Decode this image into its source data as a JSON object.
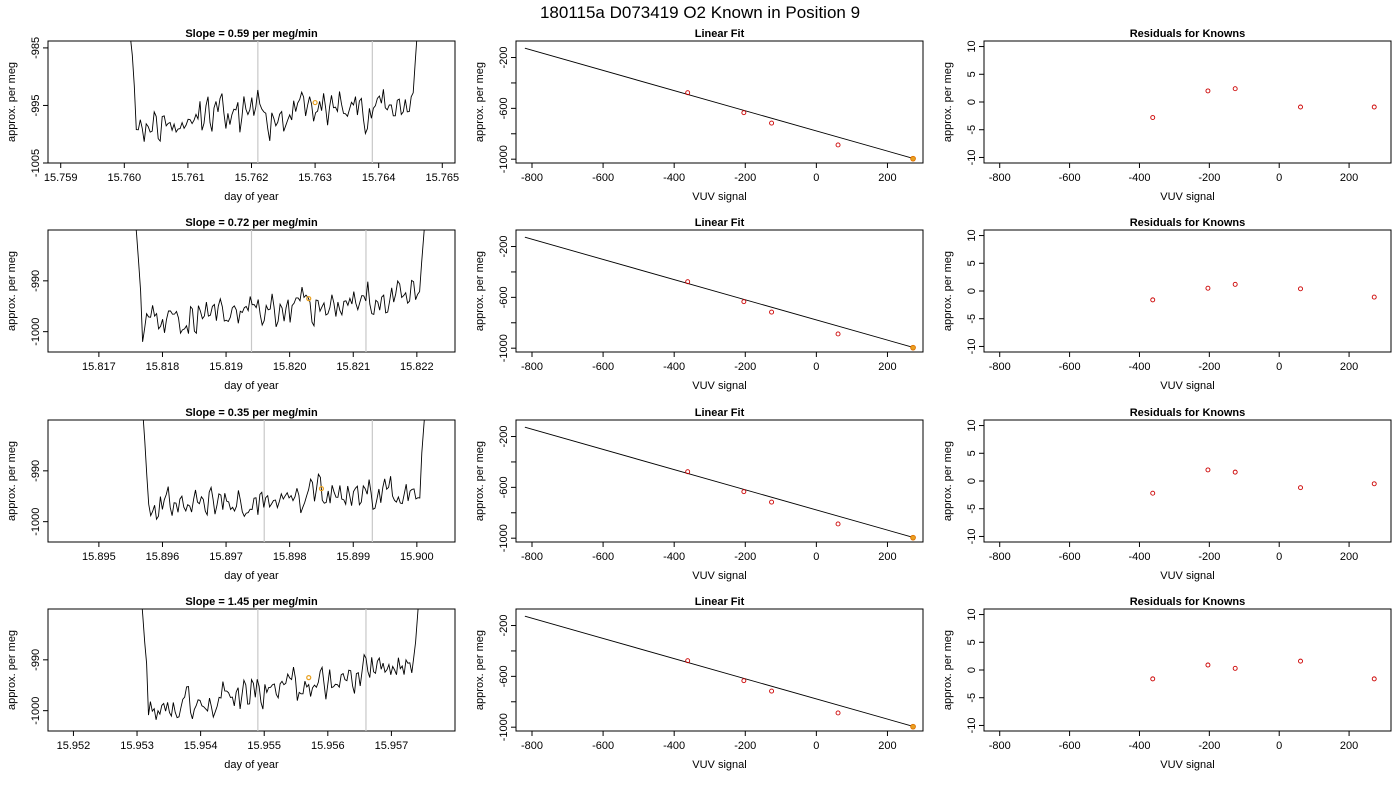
{
  "figure": {
    "title": "180115a      D073419   O2 Known in Position  9"
  },
  "chart_data": [
    {
      "id": "r1c1",
      "type": "line",
      "title": "Slope =  0.59  per meg/min",
      "xlabel": "day of year",
      "ylabel": "approx. per meg",
      "xlim": [
        15.7588,
        15.7652
      ],
      "ylim": [
        -1005,
        -983.8
      ],
      "xticks": [
        15.759,
        15.76,
        15.761,
        15.762,
        15.763,
        15.764,
        15.765
      ],
      "xtick_labels": [
        "15.759",
        "15.760",
        "15.761",
        "15.762",
        "15.763",
        "15.764",
        "15.765"
      ],
      "yticks": [
        -1005,
        -995,
        -985
      ],
      "ytick_labels": [
        "-1005",
        "-995",
        "-985"
      ],
      "vlines": [
        15.7621,
        15.7639
      ],
      "start": 15.76,
      "end": 15.7647,
      "level": -996.5,
      "slope_per_day": 849.6,
      "seed": 11,
      "marker": {
        "x": 15.763,
        "y": -994.5
      }
    },
    {
      "id": "r1c2",
      "type": "scatter",
      "title": "Linear Fit",
      "xlabel": "VUV signal",
      "ylabel": "approx. per meg",
      "xlim": [
        -845,
        300
      ],
      "ylim": [
        -1030,
        -70
      ],
      "xticks": [
        -800,
        -600,
        -400,
        -200,
        0,
        200
      ],
      "xtick_labels": [
        "-800",
        "-600",
        "-400",
        "-200",
        "0",
        "200"
      ],
      "yticks": [
        -1000,
        -800,
        -600,
        -400,
        -200
      ],
      "ytick_labels": [
        "-1000",
        "",
        "-600",
        "",
        "-200"
      ],
      "line": {
        "x": [
          -820,
          275
        ],
        "y": [
          -127,
          -996
        ]
      },
      "points": [
        {
          "x": -362,
          "y": -477
        },
        {
          "x": -204,
          "y": -634
        },
        {
          "x": -126,
          "y": -716
        },
        {
          "x": 61,
          "y": -888
        },
        {
          "x": 272,
          "y": -996
        }
      ],
      "highlight": 4
    },
    {
      "id": "r1c3",
      "type": "scatter",
      "title": "Residuals for Knowns",
      "xlabel": "VUV signal",
      "ylabel": "approx. per meg",
      "xlim": [
        -845,
        320
      ],
      "ylim": [
        -11,
        11
      ],
      "xticks": [
        -800,
        -600,
        -400,
        -200,
        0,
        200
      ],
      "xtick_labels": [
        "-800",
        "-600",
        "-400",
        "-200",
        "0",
        "200"
      ],
      "yticks": [
        -10,
        -5,
        0,
        5,
        10
      ],
      "ytick_labels": [
        "-10",
        "-5",
        "0",
        "5",
        "10"
      ],
      "points": [
        {
          "x": -362,
          "y": -2.8
        },
        {
          "x": -204,
          "y": 2.0
        },
        {
          "x": -126,
          "y": 2.4
        },
        {
          "x": 61,
          "y": -0.9
        },
        {
          "x": 272,
          "y": -0.9
        }
      ]
    },
    {
      "id": "r2c1",
      "type": "line",
      "title": "Slope =  0.72  per meg/min",
      "xlabel": "day of year",
      "ylabel": "approx. per meg",
      "xlim": [
        15.8162,
        15.8226
      ],
      "ylim": [
        -1004,
        -980
      ],
      "xticks": [
        15.817,
        15.818,
        15.819,
        15.82,
        15.821,
        15.822
      ],
      "xtick_labels": [
        "15.817",
        "15.818",
        "15.819",
        "15.820",
        "15.821",
        "15.822"
      ],
      "yticks": [
        -1000,
        -990
      ],
      "ytick_labels": [
        "-1000",
        "-990"
      ],
      "vlines": [
        15.8194,
        15.8212
      ],
      "start": 15.8175,
      "end": 15.8222,
      "level": -995.5,
      "slope_per_day": 1036.8,
      "seed": 23,
      "marker": {
        "x": 15.8203,
        "y": -993.5
      }
    },
    {
      "id": "r2c2",
      "type": "scatter",
      "title": "Linear Fit",
      "xlabel": "VUV signal",
      "ylabel": "approx. per meg",
      "xlim": [
        -845,
        300
      ],
      "ylim": [
        -1030,
        -70
      ],
      "xticks": [
        -800,
        -600,
        -400,
        -200,
        0,
        200
      ],
      "xtick_labels": [
        "-800",
        "-600",
        "-400",
        "-200",
        "0",
        "200"
      ],
      "yticks": [
        -1000,
        -800,
        -600,
        -400,
        -200
      ],
      "ytick_labels": [
        "-1000",
        "",
        "-600",
        "",
        "-200"
      ],
      "line": {
        "x": [
          -820,
          275
        ],
        "y": [
          -127,
          -996
        ]
      },
      "points": [
        {
          "x": -362,
          "y": -477
        },
        {
          "x": -204,
          "y": -634
        },
        {
          "x": -126,
          "y": -716
        },
        {
          "x": 61,
          "y": -888
        },
        {
          "x": 272,
          "y": -996
        }
      ],
      "highlight": 4
    },
    {
      "id": "r2c3",
      "type": "scatter",
      "title": "Residuals for Knowns",
      "xlabel": "VUV signal",
      "ylabel": "approx. per meg",
      "xlim": [
        -845,
        320
      ],
      "ylim": [
        -11,
        11
      ],
      "xticks": [
        -800,
        -600,
        -400,
        -200,
        0,
        200
      ],
      "xtick_labels": [
        "-800",
        "-600",
        "-400",
        "-200",
        "0",
        "200"
      ],
      "yticks": [
        -10,
        -5,
        0,
        5,
        10
      ],
      "ytick_labels": [
        "-10",
        "-5",
        "0",
        "5",
        "10"
      ],
      "points": [
        {
          "x": -362,
          "y": -1.6
        },
        {
          "x": -204,
          "y": 0.5
        },
        {
          "x": -126,
          "y": 1.2
        },
        {
          "x": 61,
          "y": 0.4
        },
        {
          "x": 272,
          "y": -1.1
        }
      ]
    },
    {
      "id": "r3c1",
      "type": "line",
      "title": "Slope =  0.35  per meg/min",
      "xlabel": "day of year",
      "ylabel": "approx. per meg",
      "xlim": [
        15.8942,
        15.9006
      ],
      "ylim": [
        -1004,
        -980
      ],
      "xticks": [
        15.895,
        15.896,
        15.897,
        15.898,
        15.899,
        15.9
      ],
      "xtick_labels": [
        "15.895",
        "15.896",
        "15.897",
        "15.898",
        "15.899",
        "15.900"
      ],
      "yticks": [
        -1000,
        -990
      ],
      "ytick_labels": [
        "-1000",
        "-990"
      ],
      "vlines": [
        15.8976,
        15.8993
      ],
      "start": 15.8956,
      "end": 15.9002,
      "level": -995.5,
      "slope_per_day": 504,
      "seed": 37,
      "marker": {
        "x": 15.8985,
        "y": -993.5
      }
    },
    {
      "id": "r3c2",
      "type": "scatter",
      "title": "Linear Fit",
      "xlabel": "VUV signal",
      "ylabel": "approx. per meg",
      "xlim": [
        -845,
        300
      ],
      "ylim": [
        -1030,
        -70
      ],
      "xticks": [
        -800,
        -600,
        -400,
        -200,
        0,
        200
      ],
      "xtick_labels": [
        "-800",
        "-600",
        "-400",
        "-200",
        "0",
        "200"
      ],
      "yticks": [
        -1000,
        -800,
        -600,
        -400,
        -200
      ],
      "ytick_labels": [
        "-1000",
        "",
        "-600",
        "",
        "-200"
      ],
      "line": {
        "x": [
          -820,
          275
        ],
        "y": [
          -127,
          -996
        ]
      },
      "points": [
        {
          "x": -362,
          "y": -477
        },
        {
          "x": -204,
          "y": -634
        },
        {
          "x": -126,
          "y": -716
        },
        {
          "x": 61,
          "y": -888
        },
        {
          "x": 272,
          "y": -996
        }
      ],
      "highlight": 4
    },
    {
      "id": "r3c3",
      "type": "scatter",
      "title": "Residuals for Knowns",
      "xlabel": "VUV signal",
      "ylabel": "approx. per meg",
      "xlim": [
        -845,
        320
      ],
      "ylim": [
        -11,
        11
      ],
      "xticks": [
        -800,
        -600,
        -400,
        -200,
        0,
        200
      ],
      "xtick_labels": [
        "-800",
        "-600",
        "-400",
        "-200",
        "0",
        "200"
      ],
      "yticks": [
        -10,
        -5,
        0,
        5,
        10
      ],
      "ytick_labels": [
        "-10",
        "-5",
        "0",
        "5",
        "10"
      ],
      "points": [
        {
          "x": -362,
          "y": -2.2
        },
        {
          "x": -204,
          "y": 2.0
        },
        {
          "x": -126,
          "y": 1.6
        },
        {
          "x": 61,
          "y": -1.2
        },
        {
          "x": 272,
          "y": -0.5
        }
      ]
    },
    {
      "id": "r4c1",
      "type": "line",
      "title": "Slope =  1.45  per meg/min",
      "xlabel": "day of year",
      "ylabel": "approx. per meg",
      "xlim": [
        15.9516,
        15.958
      ],
      "ylim": [
        -1004,
        -980
      ],
      "xticks": [
        15.952,
        15.953,
        15.954,
        15.955,
        15.956,
        15.957
      ],
      "xtick_labels": [
        "15.952",
        "15.953",
        "15.954",
        "15.955",
        "15.956",
        "15.957"
      ],
      "yticks": [
        -1000,
        -990
      ],
      "ytick_labels": [
        "-1000",
        "-990"
      ],
      "vlines": [
        15.9549,
        15.9566
      ],
      "start": 15.953,
      "end": 15.9575,
      "level": -995.5,
      "slope_per_day": 2088,
      "seed": 53,
      "marker": {
        "x": 15.9557,
        "y": -993.5
      }
    },
    {
      "id": "r4c2",
      "type": "scatter",
      "title": "Linear Fit",
      "xlabel": "VUV signal",
      "ylabel": "approx. per meg",
      "xlim": [
        -845,
        300
      ],
      "ylim": [
        -1030,
        -70
      ],
      "xticks": [
        -800,
        -600,
        -400,
        -200,
        0,
        200
      ],
      "xtick_labels": [
        "-800",
        "-600",
        "-400",
        "-200",
        "0",
        "200"
      ],
      "yticks": [
        -1000,
        -800,
        -600,
        -400,
        -200
      ],
      "ytick_labels": [
        "-1000",
        "",
        "-600",
        "",
        "-200"
      ],
      "line": {
        "x": [
          -820,
          275
        ],
        "y": [
          -127,
          -996
        ]
      },
      "points": [
        {
          "x": -362,
          "y": -477
        },
        {
          "x": -204,
          "y": -634
        },
        {
          "x": -126,
          "y": -716
        },
        {
          "x": 61,
          "y": -888
        },
        {
          "x": 272,
          "y": -996
        }
      ],
      "highlight": 4
    },
    {
      "id": "r4c3",
      "type": "scatter",
      "title": "Residuals for Knowns",
      "xlabel": "VUV signal",
      "ylabel": "approx. per meg",
      "xlim": [
        -845,
        320
      ],
      "ylim": [
        -11,
        11
      ],
      "xticks": [
        -800,
        -600,
        -400,
        -200,
        0,
        200
      ],
      "xtick_labels": [
        "-800",
        "-600",
        "-400",
        "-200",
        "0",
        "200"
      ],
      "yticks": [
        -10,
        -5,
        0,
        5,
        10
      ],
      "ytick_labels": [
        "-10",
        "-5",
        "0",
        "5",
        "10"
      ],
      "points": [
        {
          "x": -362,
          "y": -1.6
        },
        {
          "x": -204,
          "y": 0.9
        },
        {
          "x": -126,
          "y": 0.3
        },
        {
          "x": 61,
          "y": 1.6
        },
        {
          "x": 272,
          "y": -1.6
        }
      ]
    }
  ],
  "colors": {
    "trace": "#000000",
    "vline": "#c8c8c8",
    "marker": "#e8a020",
    "residual_point": "#cc0000",
    "fit_point": "#cc0000",
    "highlight_point": "#e07000"
  }
}
